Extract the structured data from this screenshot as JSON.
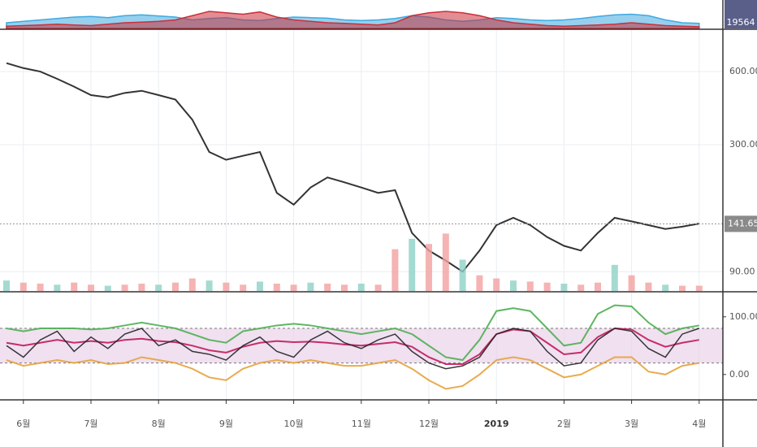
{
  "chart_data": [
    {
      "type": "area",
      "ylim": [
        0,
        100
      ],
      "current_label": "19564",
      "series": [
        {
          "name": "blue",
          "color": "#3fa9e0",
          "values": [
            20,
            25,
            30,
            35,
            40,
            42,
            38,
            45,
            48,
            44,
            40,
            30,
            35,
            38,
            30,
            28,
            35,
            40,
            38,
            36,
            30,
            28,
            30,
            35,
            45,
            40,
            30,
            25,
            30,
            38,
            35,
            30,
            28,
            30,
            35,
            42,
            48,
            50,
            45,
            30,
            20,
            18
          ]
        },
        {
          "name": "red",
          "color": "#c9303a",
          "values": [
            8,
            10,
            12,
            15,
            12,
            10,
            15,
            20,
            22,
            25,
            30,
            45,
            60,
            55,
            50,
            58,
            40,
            30,
            25,
            20,
            18,
            15,
            12,
            20,
            45,
            55,
            60,
            55,
            45,
            30,
            20,
            15,
            10,
            8,
            10,
            12,
            15,
            20,
            15,
            10,
            8,
            6
          ]
        }
      ]
    },
    {
      "type": "price",
      "log": true,
      "ylim": [
        75,
        889
      ],
      "yticks": [
        {
          "value": 90,
          "label": "90.00"
        },
        {
          "value": 300,
          "label": "300.00"
        },
        {
          "value": 600,
          "label": "600.00"
        }
      ],
      "last_price": {
        "value": 141.65,
        "label": "141.65"
      },
      "series": [
        {
          "name": "price",
          "color": "#333333",
          "values": [
            650,
            620,
            600,
            560,
            520,
            480,
            470,
            490,
            500,
            480,
            460,
            380,
            280,
            260,
            270,
            280,
            190,
            170,
            200,
            220,
            210,
            200,
            190,
            195,
            130,
            110,
            100,
            90,
            110,
            140,
            150,
            140,
            125,
            115,
            110,
            130,
            150,
            145,
            140,
            135,
            138,
            142
          ]
        },
        {
          "name": "volume",
          "color": "#f2a0a0",
          "axis": "y2",
          "values": [
            10,
            8,
            7,
            6,
            8,
            6,
            5,
            6,
            7,
            6,
            8,
            12,
            10,
            8,
            6,
            9,
            7,
            6,
            8,
            7,
            6,
            7,
            6,
            40,
            50,
            45,
            55,
            30,
            15,
            12,
            10,
            9,
            8,
            7,
            6,
            8,
            25,
            15,
            8,
            6,
            5,
            5
          ]
        }
      ],
      "y2lim": [
        0,
        250
      ]
    },
    {
      "type": "oscillator",
      "ylim": [
        -44,
        142
      ],
      "yticks": [
        {
          "value": 0,
          "label": "0.00"
        },
        {
          "value": 100,
          "label": "100.00"
        }
      ],
      "band": [
        20,
        80
      ],
      "categories": [
        null,
        "6월",
        null,
        null,
        null,
        "7월",
        null,
        null,
        null,
        "8월",
        null,
        null,
        null,
        "9월",
        null,
        null,
        null,
        "10월",
        null,
        null,
        null,
        "11월",
        null,
        null,
        null,
        "12월",
        null,
        null,
        null,
        "2019",
        null,
        null,
        null,
        "2월",
        null,
        null,
        null,
        "3월",
        null,
        null,
        null,
        "4월"
      ],
      "series": [
        {
          "name": "upper",
          "color": "#4caf50",
          "values": [
            80,
            75,
            80,
            80,
            80,
            78,
            80,
            85,
            90,
            85,
            80,
            70,
            60,
            55,
            75,
            80,
            85,
            88,
            85,
            80,
            75,
            70,
            75,
            80,
            70,
            50,
            30,
            25,
            60,
            110,
            115,
            110,
            80,
            50,
            55,
            105,
            120,
            118,
            90,
            70,
            80,
            85
          ]
        },
        {
          "name": "mid",
          "color": "#c2185b",
          "values": [
            55,
            50,
            55,
            60,
            55,
            58,
            55,
            60,
            62,
            58,
            56,
            50,
            42,
            38,
            48,
            55,
            58,
            56,
            57,
            55,
            52,
            50,
            53,
            56,
            48,
            30,
            18,
            18,
            35,
            70,
            78,
            75,
            55,
            35,
            38,
            65,
            80,
            78,
            60,
            48,
            55,
            60
          ]
        },
        {
          "name": "lower",
          "color": "#e6a23c",
          "values": [
            25,
            15,
            20,
            25,
            20,
            25,
            18,
            20,
            30,
            25,
            20,
            10,
            -5,
            -10,
            10,
            20,
            25,
            20,
            25,
            20,
            15,
            15,
            20,
            25,
            10,
            -10,
            -25,
            -20,
            0,
            25,
            30,
            25,
            10,
            -5,
            0,
            15,
            30,
            30,
            5,
            0,
            15,
            20
          ]
        },
        {
          "name": "oscillator",
          "color": "#222222",
          "values": [
            50,
            30,
            60,
            75,
            40,
            65,
            45,
            70,
            80,
            50,
            60,
            40,
            35,
            25,
            50,
            65,
            40,
            30,
            60,
            75,
            55,
            45,
            60,
            70,
            40,
            20,
            10,
            15,
            30,
            70,
            80,
            75,
            40,
            15,
            20,
            60,
            80,
            75,
            45,
            30,
            70,
            80
          ]
        }
      ]
    }
  ]
}
